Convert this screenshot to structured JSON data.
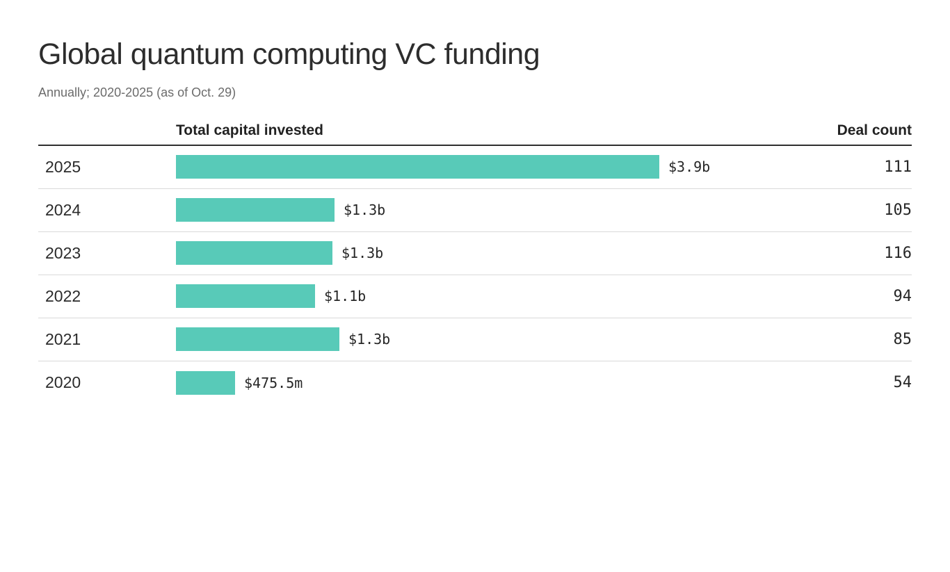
{
  "chart": {
    "title": "Global quantum computing VC funding",
    "subtitle": "Annually; 2020-2025 (as of Oct. 29)",
    "columns": {
      "capital": "Total capital invested",
      "deals": "Deal count"
    }
  },
  "chart_data": {
    "type": "bar",
    "orientation": "horizontal",
    "title": "Global quantum computing VC funding",
    "subtitle": "Annually; 2020-2025 (as of Oct. 29)",
    "categories": [
      "2025",
      "2024",
      "2023",
      "2022",
      "2021",
      "2020"
    ],
    "series": [
      {
        "name": "Total capital invested ($M)",
        "values": [
          3900,
          1280,
          1260,
          1120,
          1320,
          475.5
        ],
        "labels": [
          "$3.9b",
          "$1.3b",
          "$1.3b",
          "$1.1b",
          "$1.3b",
          "$475.5m"
        ]
      },
      {
        "name": "Deal count",
        "values": [
          111,
          105,
          116,
          94,
          85,
          54
        ]
      }
    ],
    "xlim": [
      0,
      3900
    ],
    "bar_color": "#58cab8",
    "grid": false,
    "legend": false,
    "value_labels": "end-of-bar"
  }
}
